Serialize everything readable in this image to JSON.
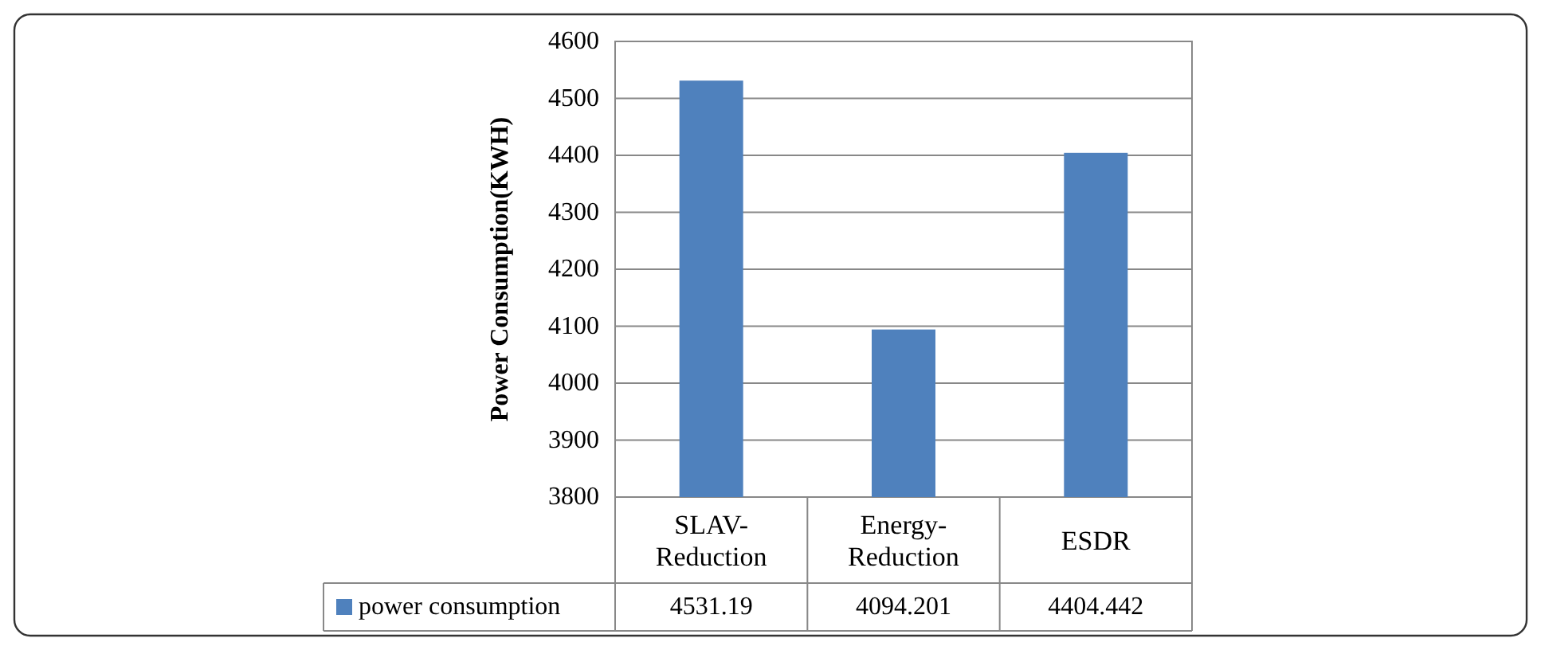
{
  "chart_data": {
    "type": "bar",
    "ylabel": "Power Consumption(KWH)",
    "categories": [
      "SLAV-Reduction",
      "Energy-Reduction",
      "ESDR"
    ],
    "series": [
      {
        "name": "power consumption",
        "color": "#4f81bd",
        "values": [
          4531.19,
          4094.201,
          4404.442
        ]
      }
    ],
    "ylim": [
      3800,
      4600
    ],
    "yticks": [
      3800,
      3900,
      4000,
      4100,
      4200,
      4300,
      4400,
      4500,
      4600
    ],
    "grid": "y",
    "legend": "bottom",
    "data_labels": true
  }
}
